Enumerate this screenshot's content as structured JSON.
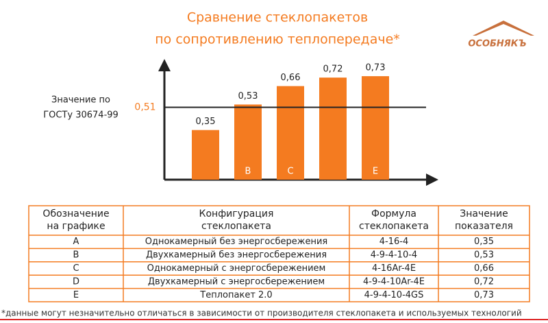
{
  "logo": "ОСОБНЯКЪ",
  "chart_data": {
    "type": "bar",
    "title": [
      "Сравнение стеклопакетов",
      "по сопротивлению теплопередаче*"
    ],
    "categories": [
      null,
      "B",
      "C",
      null,
      "E"
    ],
    "values": [
      0.35,
      0.53,
      0.66,
      0.72,
      0.73
    ],
    "value_labels": [
      "0,35",
      "0,53",
      "0,66",
      "0,72",
      "0,73"
    ],
    "color": "#f47b20",
    "ylim": [
      0,
      0.8
    ],
    "reference_line": {
      "value": 0.51,
      "label": "0,51",
      "annotation": [
        "Значение по",
        "ГОСТу 30674-99"
      ]
    }
  },
  "table": {
    "header": [
      [
        "Обозначение",
        "на графике"
      ],
      [
        "Конфигурация",
        "стеклопакета"
      ],
      [
        "Формула",
        "стеклопакета"
      ],
      [
        "Значение",
        "показателя"
      ]
    ],
    "rows": [
      [
        "A",
        "Однокамерный без энергосбережения",
        "4-16-4",
        "0,35"
      ],
      [
        "B",
        "Двухкамерный без энергосбережения",
        "4-9-4-10-4",
        "0,53"
      ],
      [
        "C",
        "Однокамерный с энергосбережением",
        "4-16Ar-4E",
        "0,66"
      ],
      [
        "D",
        "Двухкамерный с энергосбережением",
        "4-9-4-10Ar-4E",
        "0,72"
      ],
      [
        "E",
        "Теплопакет 2.0",
        "4-9-4-10-4GS",
        "0,73"
      ]
    ]
  },
  "footnote": "*данные могут незначительно отличаться в зависимости от производителя стеклопакета и используемых технологий"
}
